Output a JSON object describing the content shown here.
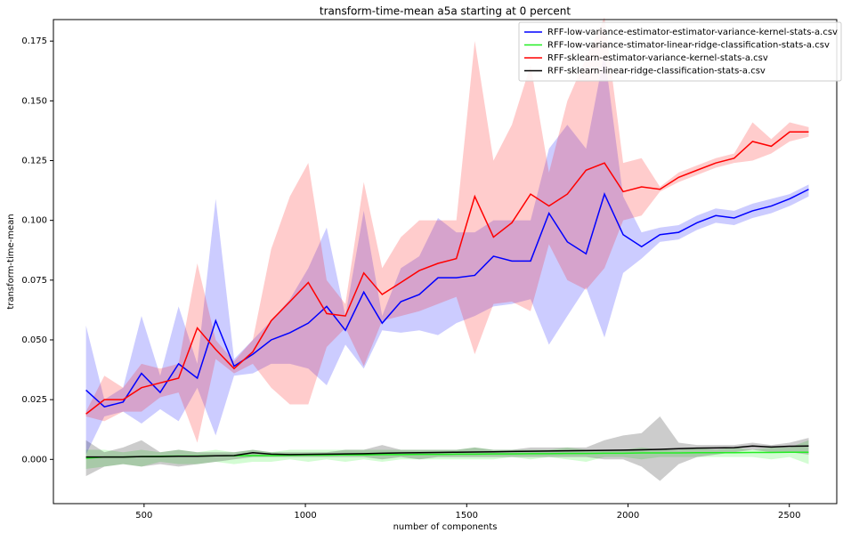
{
  "chart_data": {
    "type": "line",
    "title": "transform-time-mean a5a starting at 0 percent",
    "xlabel": "number of components",
    "ylabel": "transform-time-mean",
    "x": [
      320,
      377,
      435,
      492,
      550,
      607,
      665,
      722,
      779,
      837,
      894,
      952,
      1009,
      1066,
      1124,
      1181,
      1238,
      1296,
      1353,
      1411,
      1468,
      1525,
      1583,
      1640,
      1698,
      1755,
      1812,
      1870,
      1927,
      1985,
      2042,
      2099,
      2157,
      2214,
      2272,
      2329,
      2386,
      2444,
      2501,
      2560
    ],
    "xlim": [
      219,
      2647
    ],
    "ylim": [
      -0.0185,
      0.184
    ],
    "xticks": [
      500,
      1000,
      1500,
      2000,
      2500
    ],
    "yticks": [
      {
        "value": 0,
        "label": "0.000"
      },
      {
        "value": 0.025,
        "label": "0.025"
      },
      {
        "value": 0.05,
        "label": "0.050"
      },
      {
        "value": 0.075,
        "label": "0.075"
      },
      {
        "value": 0.1,
        "label": "0.100"
      },
      {
        "value": 0.125,
        "label": "0.125"
      },
      {
        "value": 0.15,
        "label": "0.150"
      },
      {
        "value": 0.175,
        "label": "0.175"
      }
    ],
    "legend": "upper right",
    "series": [
      {
        "name": "RFF-low-variance-estimator-estimator-variance-kernel-stats-a.csv",
        "color": "#0000ff",
        "values": [
          0.029,
          0.022,
          0.024,
          0.036,
          0.028,
          0.04,
          0.034,
          0.058,
          0.039,
          0.044,
          0.05,
          0.053,
          0.057,
          0.064,
          0.054,
          0.07,
          0.057,
          0.066,
          0.069,
          0.076,
          0.076,
          0.077,
          0.085,
          0.083,
          0.083,
          0.103,
          0.091,
          0.086,
          0.111,
          0.094,
          0.089,
          0.094,
          0.095,
          0.099,
          0.102,
          0.101,
          0.104,
          0.106,
          0.109,
          0.113
        ],
        "upper": [
          0.056,
          0.025,
          0.03,
          0.06,
          0.035,
          0.064,
          0.04,
          0.109,
          0.042,
          0.05,
          0.058,
          0.067,
          0.08,
          0.097,
          0.06,
          0.104,
          0.06,
          0.08,
          0.085,
          0.101,
          0.095,
          0.095,
          0.1,
          0.1,
          0.1,
          0.13,
          0.14,
          0.13,
          0.17,
          0.11,
          0.095,
          0.097,
          0.098,
          0.102,
          0.105,
          0.104,
          0.107,
          0.109,
          0.111,
          0.115
        ],
        "lower": [
          0.002,
          0.018,
          0.02,
          0.015,
          0.021,
          0.016,
          0.03,
          0.01,
          0.035,
          0.036,
          0.04,
          0.04,
          0.038,
          0.031,
          0.048,
          0.038,
          0.054,
          0.053,
          0.054,
          0.052,
          0.057,
          0.06,
          0.064,
          0.065,
          0.067,
          0.048,
          0.06,
          0.072,
          0.051,
          0.078,
          0.084,
          0.091,
          0.092,
          0.096,
          0.099,
          0.098,
          0.101,
          0.103,
          0.106,
          0.11
        ]
      },
      {
        "name": "RFF-low-variance-stimator-linear-ridge-classification-stats-a.csv",
        "color": "#22ee22",
        "values": [
          0.0005,
          0.001,
          0.001,
          0.0012,
          0.0013,
          0.0014,
          0.0014,
          0.0015,
          0.0015,
          0.0016,
          0.0016,
          0.0017,
          0.0018,
          0.0018,
          0.0019,
          0.0019,
          0.002,
          0.002,
          0.0021,
          0.0021,
          0.0022,
          0.0022,
          0.0023,
          0.0023,
          0.0024,
          0.0024,
          0.0025,
          0.0025,
          0.0026,
          0.0026,
          0.0027,
          0.0027,
          0.0027,
          0.0028,
          0.0028,
          0.0028,
          0.0029,
          0.0029,
          0.003,
          0.003
        ],
        "upper": [
          0.004,
          0.004,
          0.003,
          0.004,
          0.003,
          0.004,
          0.003,
          0.004,
          0.003,
          0.004,
          0.003,
          0.004,
          0.004,
          0.004,
          0.004,
          0.004,
          0.004,
          0.004,
          0.004,
          0.004,
          0.004,
          0.005,
          0.004,
          0.004,
          0.004,
          0.004,
          0.005,
          0.004,
          0.004,
          0.004,
          0.005,
          0.004,
          0.004,
          0.005,
          0.004,
          0.005,
          0.004,
          0.005,
          0.005,
          0.008
        ],
        "lower": [
          -0.004,
          -0.003,
          -0.002,
          -0.003,
          -0.001,
          -0.002,
          -0.002,
          -0.001,
          -0.002,
          -0.001,
          -0.001,
          0,
          -0.001,
          0,
          -0.001,
          0,
          -0.001,
          0,
          0,
          0,
          0,
          0,
          0,
          0.001,
          0,
          0.001,
          0,
          -0.001,
          0.001,
          0.001,
          0,
          0.001,
          0.001,
          0.001,
          0.001,
          0.001,
          0.001,
          0,
          0.001,
          -0.002
        ]
      },
      {
        "name": "RFF-sklearn-estimator-variance-kernel-stats-a.csv",
        "color": "#ff0000",
        "values": [
          0.019,
          0.025,
          0.025,
          0.03,
          0.032,
          0.034,
          0.055,
          0.046,
          0.038,
          0.045,
          0.058,
          0.066,
          0.074,
          0.061,
          0.06,
          0.078,
          0.069,
          0.074,
          0.079,
          0.082,
          0.084,
          0.11,
          0.093,
          0.099,
          0.111,
          0.106,
          0.111,
          0.121,
          0.124,
          0.112,
          0.114,
          0.113,
          0.118,
          0.121,
          0.124,
          0.126,
          0.133,
          0.131,
          0.137,
          0.137
        ],
        "upper": [
          0.02,
          0.035,
          0.03,
          0.04,
          0.038,
          0.04,
          0.082,
          0.05,
          0.041,
          0.05,
          0.088,
          0.11,
          0.124,
          0.075,
          0.065,
          0.116,
          0.08,
          0.093,
          0.1,
          0.1,
          0.1,
          0.175,
          0.125,
          0.14,
          0.165,
          0.12,
          0.15,
          0.168,
          0.185,
          0.124,
          0.126,
          0.114,
          0.12,
          0.123,
          0.126,
          0.128,
          0.141,
          0.134,
          0.141,
          0.139
        ],
        "lower": [
          0.018,
          0.016,
          0.02,
          0.02,
          0.026,
          0.028,
          0.007,
          0.042,
          0.036,
          0.04,
          0.03,
          0.023,
          0.023,
          0.047,
          0.055,
          0.039,
          0.058,
          0.06,
          0.062,
          0.065,
          0.068,
          0.044,
          0.065,
          0.066,
          0.062,
          0.09,
          0.075,
          0.071,
          0.08,
          0.1,
          0.102,
          0.112,
          0.116,
          0.119,
          0.122,
          0.124,
          0.125,
          0.128,
          0.133,
          0.135
        ]
      },
      {
        "name": "RFF-sklearn-linear-ridge-classification-stats-a.csv",
        "color": "#000000",
        "values": [
          0.001,
          0.001,
          0.001,
          0.0012,
          0.0012,
          0.0013,
          0.0013,
          0.0015,
          0.0016,
          0.0028,
          0.0022,
          0.002,
          0.0021,
          0.0022,
          0.0023,
          0.0024,
          0.0026,
          0.0027,
          0.0028,
          0.0029,
          0.003,
          0.0031,
          0.0032,
          0.0033,
          0.0034,
          0.0035,
          0.0036,
          0.0037,
          0.0038,
          0.0039,
          0.004,
          0.0042,
          0.0045,
          0.0047,
          0.0048,
          0.0049,
          0.0056,
          0.0052,
          0.0055,
          0.0056
        ],
        "upper": [
          0.008,
          0.003,
          0.005,
          0.008,
          0.003,
          0.004,
          0.003,
          0.003,
          0.003,
          0.004,
          0.003,
          0.003,
          0.003,
          0.003,
          0.004,
          0.004,
          0.006,
          0.004,
          0.004,
          0.004,
          0.004,
          0.005,
          0.004,
          0.004,
          0.005,
          0.005,
          0.005,
          0.005,
          0.008,
          0.01,
          0.011,
          0.018,
          0.007,
          0.006,
          0.006,
          0.006,
          0.007,
          0.006,
          0.007,
          0.009
        ],
        "lower": [
          -0.007,
          -0.003,
          -0.002,
          -0.003,
          -0.002,
          -0.003,
          -0.002,
          -0.001,
          0,
          0.001,
          0.001,
          0.001,
          0.001,
          0.001,
          0.001,
          0.001,
          0,
          0.001,
          0,
          0.001,
          0.001,
          0.001,
          0.001,
          0.001,
          0.001,
          0.001,
          0.001,
          0.001,
          0,
          0,
          -0.003,
          -0.009,
          -0.002,
          0.001,
          0.002,
          0.003,
          0.004,
          0.003,
          0.003,
          0.002
        ]
      }
    ]
  }
}
